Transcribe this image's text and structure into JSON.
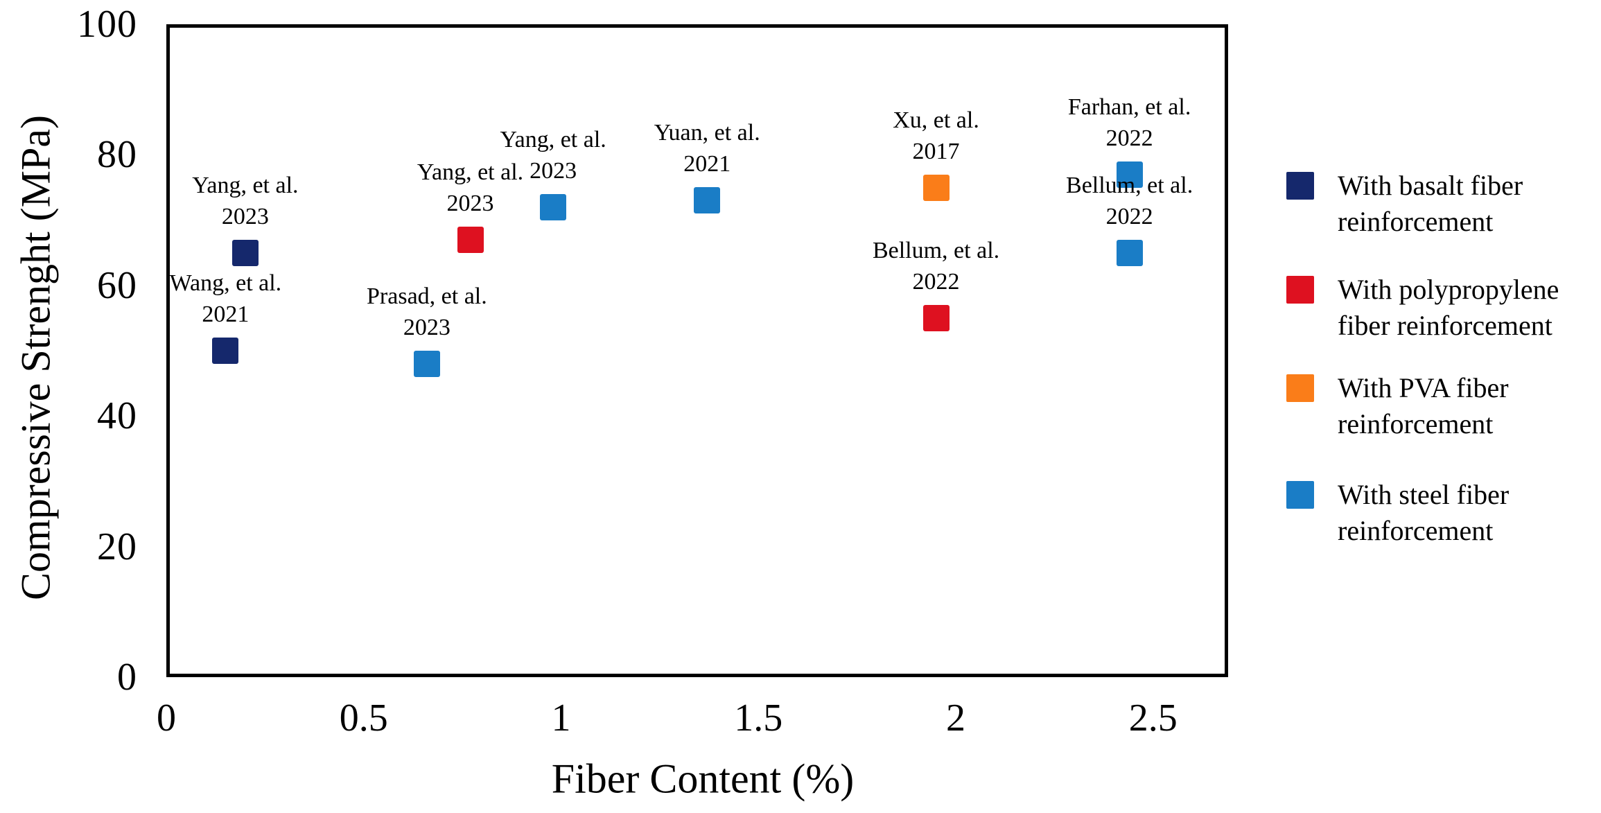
{
  "chart_data": {
    "type": "scatter",
    "title": "",
    "xlabel": "Fiber Content (%)",
    "ylabel": "Compressive Strenght (MPa)",
    "xlim": [
      0,
      2.69
    ],
    "ylim": [
      0,
      100
    ],
    "x_tick_values": [
      0,
      0.5,
      1,
      1.5,
      2,
      2.5
    ],
    "x_tick_labels": [
      "0",
      "0.5",
      "1",
      "1.5",
      "2",
      "2.5"
    ],
    "y_tick_values": [
      0,
      20,
      40,
      60,
      80,
      100
    ],
    "y_tick_labels": [
      "0",
      "20",
      "40",
      "60",
      "80",
      "100"
    ],
    "grid": false,
    "legend_position": "right-outside",
    "axis_color": "#000000",
    "background_color": "#ffffff",
    "series": [
      {
        "name": "With basalt fiber reinforcement",
        "legend_lines": [
          "With basalt fiber",
          "reinforcement"
        ],
        "color": "#15286c",
        "points": [
          {
            "label": "Yang, et al.",
            "year": "2023",
            "x": 0.2,
            "y": 65
          },
          {
            "label": "Wang, et al.",
            "year": "2021",
            "x": 0.15,
            "y": 50
          }
        ]
      },
      {
        "name": "With polypropylene fiber reinforcement",
        "legend_lines": [
          "With polypropylene",
          "fiber reinforcement"
        ],
        "color": "#de1120",
        "points": [
          {
            "label": "Yang, et al.",
            "year": "2023",
            "x": 0.77,
            "y": 67
          },
          {
            "label": "Bellum, et al.",
            "year": "2022",
            "x": 1.95,
            "y": 55
          }
        ]
      },
      {
        "name": "With PVA fiber reinforcement",
        "legend_lines": [
          "With PVA fiber",
          "reinforcement"
        ],
        "color": "#fa7d19",
        "points": [
          {
            "label": "Xu, et al.",
            "year": "2017",
            "x": 1.95,
            "y": 75
          }
        ]
      },
      {
        "name": "With steel fiber reinforcement",
        "legend_lines": [
          "With steel fiber",
          "reinforcement"
        ],
        "color": "#1a7dc6",
        "points": [
          {
            "label": "Prasad, et al.",
            "year": "2023",
            "x": 0.66,
            "y": 48
          },
          {
            "label": "Yang, et al.",
            "year": "2023",
            "x": 0.98,
            "y": 72
          },
          {
            "label": "Yuan, et al.",
            "year": "2021",
            "x": 1.37,
            "y": 73
          },
          {
            "label": "Farhan, et al.",
            "year": "2022",
            "x": 2.44,
            "y": 77
          },
          {
            "label": "Bellum, et al.",
            "year": "2022",
            "x": 2.44,
            "y": 65
          }
        ]
      }
    ]
  },
  "layout_note_visible_elements_only": "scatter chart with outside legend, no gridlines, boxed plot area"
}
